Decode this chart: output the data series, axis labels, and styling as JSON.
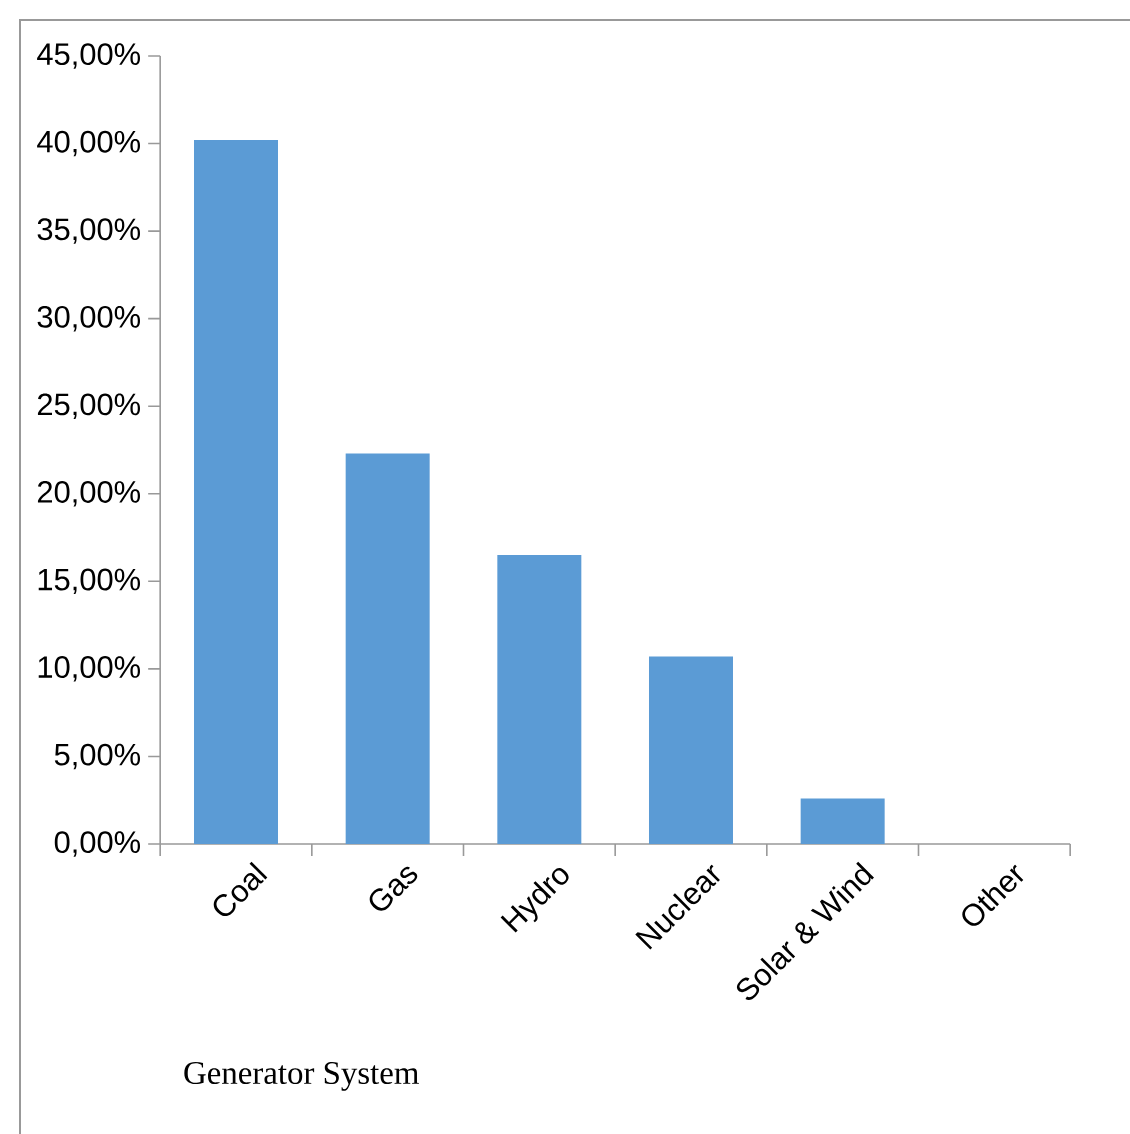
{
  "chart_data": {
    "type": "bar",
    "xlabel": "Generator System",
    "categories": [
      "Coal",
      "Gas",
      "Hydro",
      "Nuclear",
      "Solar & Wind",
      "Other"
    ],
    "values": [
      40.2,
      22.3,
      16.5,
      10.7,
      2.6,
      0
    ],
    "color": "#5b9bd5",
    "ylim": [
      0,
      45
    ],
    "yticks": [
      {
        "value": 0,
        "label": "0,00%"
      },
      {
        "value": 5,
        "label": "5,00%"
      },
      {
        "value": 10,
        "label": "10,00%"
      },
      {
        "value": 15,
        "label": "15,00%"
      },
      {
        "value": 20,
        "label": "20,00%"
      },
      {
        "value": 25,
        "label": "25,00%"
      },
      {
        "value": 30,
        "label": "30,00%"
      },
      {
        "value": 35,
        "label": "35,00%"
      },
      {
        "value": 40,
        "label": "40,00%"
      },
      {
        "value": 45,
        "label": "45,00%"
      }
    ],
    "grid": false
  }
}
